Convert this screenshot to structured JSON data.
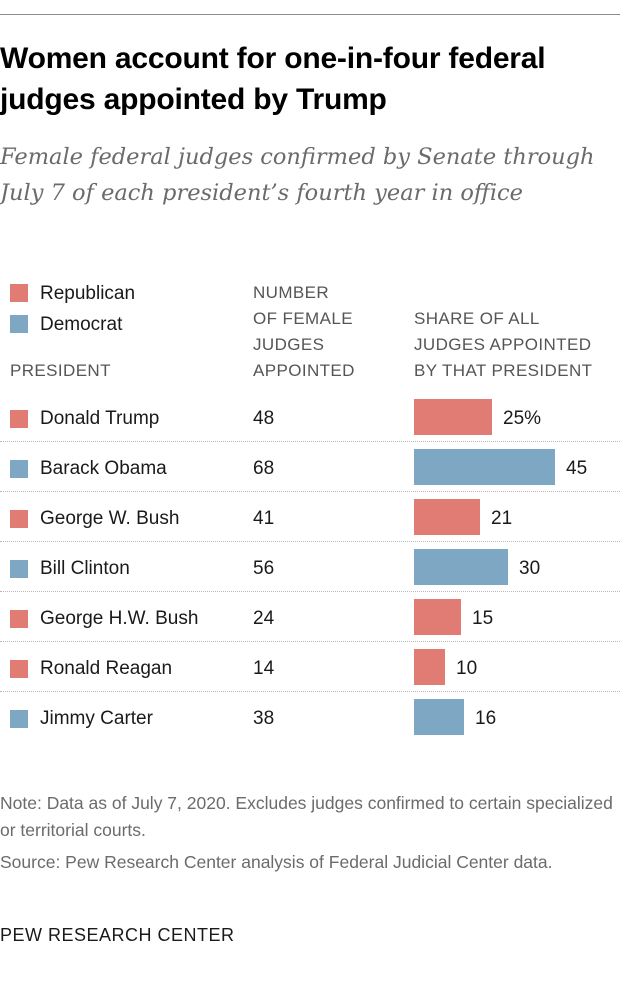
{
  "title": "Women account for one-in-four federal judges appointed by Trump",
  "subtitle": "Female federal judges confirmed by Senate through July 7 of each president’s fourth year in office",
  "colors": {
    "republican": "#e17c75",
    "democrat": "#7ea7c3"
  },
  "legend": [
    {
      "label": "Republican",
      "party": "republican"
    },
    {
      "label": "Democrat",
      "party": "democrat"
    }
  ],
  "column_headers": {
    "president": "PRESIDENT",
    "number": "NUMBER\nOF FEMALE\nJUDGES\nAPPOINTED",
    "share": "SHARE OF ALL\nJUDGES APPOINTED\nBY THAT PRESIDENT"
  },
  "chart_data": {
    "type": "bar",
    "categories": [
      "Donald Trump",
      "Barack Obama",
      "George W. Bush",
      "Bill Clinton",
      "George H.W. Bush",
      "Ronald Reagan",
      "Jimmy Carter"
    ],
    "party": [
      "republican",
      "democrat",
      "republican",
      "democrat",
      "republican",
      "republican",
      "democrat"
    ],
    "female_judges_appointed": [
      48,
      68,
      41,
      56,
      24,
      14,
      38
    ],
    "values": [
      25,
      45,
      21,
      30,
      15,
      10,
      16
    ],
    "value_labels": [
      "25%",
      "45",
      "21",
      "30",
      "15",
      "10",
      "16"
    ],
    "ylim": [
      0,
      45
    ]
  },
  "note": "Note: Data as of July 7, 2020. Excludes judges confirmed to certain specialized or territorial courts.",
  "source": "Source: Pew Research Center analysis of Federal Judicial Center data.",
  "brand": "PEW RESEARCH CENTER"
}
